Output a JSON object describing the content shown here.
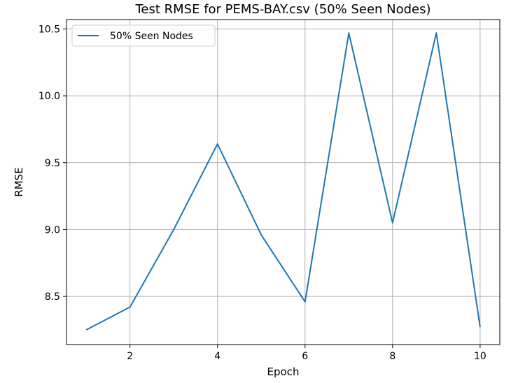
{
  "chart_data": {
    "type": "line",
    "title": "Test RMSE for PEMS-BAY.csv (50% Seen Nodes)",
    "xlabel": "Epoch",
    "ylabel": "RMSE",
    "xlim": [
      0.55,
      10.45
    ],
    "ylim": [
      8.14,
      10.57
    ],
    "xticks": [
      2,
      4,
      6,
      8,
      10
    ],
    "yticks": [
      8.5,
      9.0,
      9.5,
      10.0,
      10.5
    ],
    "xtick_labels": [
      "2",
      "4",
      "6",
      "8",
      "10"
    ],
    "ytick_labels": [
      "8.5",
      "9.0",
      "9.5",
      "10.0",
      "10.5"
    ],
    "grid": true,
    "legend": "top-left",
    "series": [
      {
        "name": "50% Seen Nodes",
        "color": "#1f77b4",
        "x": [
          1,
          2,
          3,
          4,
          5,
          6,
          7,
          8,
          9,
          10
        ],
        "y": [
          8.25,
          8.42,
          9.0,
          9.64,
          8.96,
          8.46,
          10.47,
          9.05,
          10.47,
          8.27
        ]
      }
    ]
  }
}
